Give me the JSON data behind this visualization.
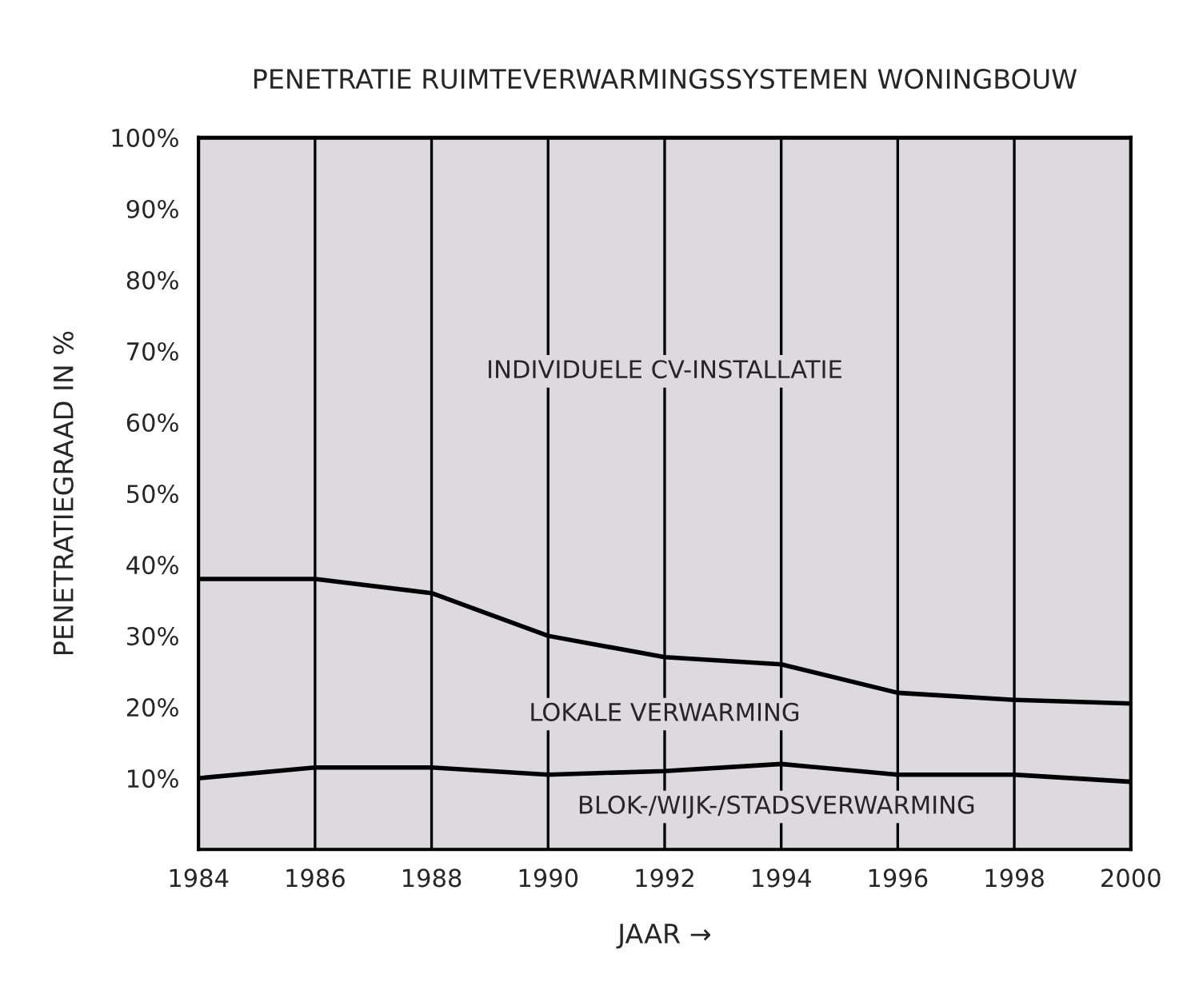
{
  "chart_data": {
    "type": "area",
    "stacked": true,
    "title": "PENETRATIE RUIMTEVERWARMINGSSYSTEMEN WONINGBOUW",
    "xlabel": "JAAR →",
    "ylabel": "PENETRATIEGRAAD IN %",
    "x": [
      1984,
      1986,
      1988,
      1990,
      1992,
      1994,
      1996,
      1998,
      2000
    ],
    "series": [
      {
        "name": "BLOK-/WIJK-/STADSVERWARMING",
        "color": "#dcdadc",
        "values": [
          10,
          11.5,
          11.5,
          10.5,
          11,
          12,
          10.5,
          10.5,
          9.5
        ]
      },
      {
        "name": "LOKALE VERWARMING",
        "color": "#dcdadc",
        "values": [
          28,
          26.5,
          24.5,
          19.5,
          16,
          14,
          11.5,
          10.5,
          11
        ]
      },
      {
        "name": "INDIVIDUELE CV-INSTALLATIE",
        "color": "#dcdadc",
        "values": [
          62,
          62,
          64,
          70,
          73,
          74,
          78,
          79,
          79.5
        ]
      }
    ],
    "xlim": [
      1984,
      2000
    ],
    "ylim": [
      0,
      100
    ],
    "xticks": [
      1984,
      1986,
      1988,
      1990,
      1992,
      1994,
      1996,
      1998,
      2000
    ],
    "yticks": [
      {
        "value": 10,
        "label": "10%"
      },
      {
        "value": 20,
        "label": "20%"
      },
      {
        "value": 30,
        "label": "30%"
      },
      {
        "value": 40,
        "label": "40%"
      },
      {
        "value": 50,
        "label": "50%"
      },
      {
        "value": 60,
        "label": "60%"
      },
      {
        "value": 70,
        "label": "70%"
      },
      {
        "value": 80,
        "label": "80%"
      },
      {
        "value": 90,
        "label": "90%"
      },
      {
        "value": 100,
        "label": "100%"
      }
    ],
    "grid": "x",
    "legend": false
  }
}
